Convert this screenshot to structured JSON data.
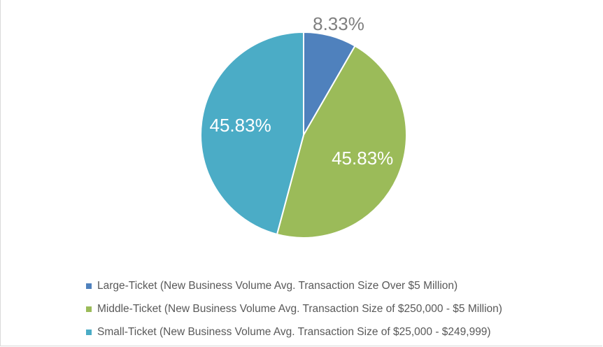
{
  "chart_data": {
    "type": "pie",
    "title": "",
    "slices": [
      {
        "name": "Large-Ticket (New Business Volume Avg. Transaction Size Over $5 Million)",
        "value": 8.33,
        "label": "8.33%",
        "color": "#4f81bd",
        "label_color": "#7f7f7f"
      },
      {
        "name": "Middle-Ticket (New Business Volume Avg. Transaction Size of $250,000 - $5 Million)",
        "value": 45.83,
        "label": "45.83%",
        "color": "#9bbb59",
        "label_color": "#ffffff"
      },
      {
        "name": "Small-Ticket (New Business Volume Avg. Transaction Size of $25,000 - $249,999)",
        "value": 45.83,
        "label": "45.83%",
        "color": "#4bacc6",
        "label_color": "#ffffff"
      }
    ],
    "legend_position": "bottom"
  }
}
